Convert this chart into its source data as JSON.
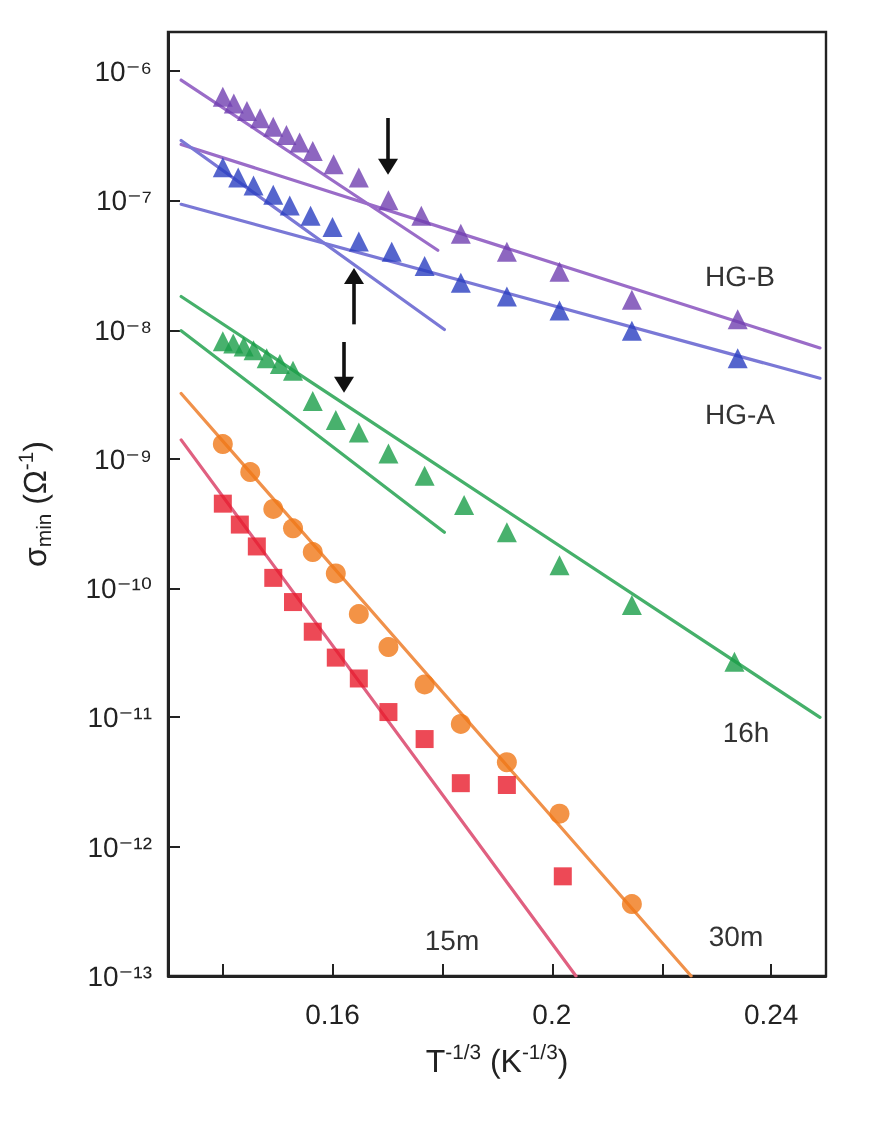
{
  "chart_data": {
    "type": "scatter",
    "xlabel": "T$^{-1/3}$ (K$^{-1/3}$)",
    "ylabel": "σ$_{min}$ (Ω$^{-1}$)",
    "log": "y",
    "grid": false,
    "xlim": [
      0.13,
      0.25
    ],
    "xticks": [
      {
        "value": 0.14,
        "label": null
      },
      0.16,
      {
        "value": 0.18,
        "label": null
      },
      0.2,
      {
        "value": 0.22,
        "label": null
      },
      0.24
    ],
    "ylim": [
      1e-13,
      2e-06
    ],
    "yticks": [
      {
        "value": 1e-13,
        "label": "10⁻¹³"
      },
      {
        "value": 1e-12,
        "label": "10⁻¹²"
      },
      {
        "value": 1e-11,
        "label": "10⁻¹¹"
      },
      {
        "value": 1e-10,
        "label": "10⁻¹⁰"
      },
      {
        "value": 1e-09,
        "label": "10⁻⁹"
      },
      {
        "value": 1e-08,
        "label": "10⁻⁸"
      },
      {
        "value": 1e-07,
        "label": "10⁻⁷"
      },
      {
        "value": 1e-06,
        "label": "10⁻⁶"
      }
    ],
    "series": [
      {
        "type": "line",
        "marker": "none",
        "color": "#9a6cc8",
        "x": [
          0.1324,
          0.1792
        ],
        "values": [
          8.5e-07,
          4.1e-08
        ]
      },
      {
        "type": "line",
        "marker": "none",
        "color": "#9a6cc8",
        "x": [
          0.1324,
          0.2489
        ],
        "values": [
          2.7e-07,
          7.2e-09
        ]
      },
      {
        "type": "line",
        "marker": "none",
        "color": "#7a78d6",
        "x": [
          0.1324,
          0.1804
        ],
        "values": [
          2.9e-07,
          1e-08
        ]
      },
      {
        "type": "line",
        "marker": "none",
        "color": "#7a78d6",
        "x": [
          0.1324,
          0.2489
        ],
        "values": [
          9.3e-08,
          4.2e-09
        ]
      },
      {
        "type": "line",
        "marker": "none",
        "color": "#45b06a",
        "x": [
          0.1324,
          0.2489
        ],
        "values": [
          1.8e-08,
          1e-11
        ]
      },
      {
        "type": "line",
        "marker": "none",
        "color": "#45b06a",
        "x": [
          0.1324,
          0.1804
        ],
        "values": [
          9.8e-09,
          2.7e-10
        ]
      },
      {
        "type": "line",
        "marker": "none",
        "color": "#f0914a",
        "x": [
          0.1324,
          0.2254
        ],
        "values": [
          3.2e-09,
          1e-13
        ]
      },
      {
        "type": "line",
        "marker": "none",
        "color": "#e06080",
        "x": [
          0.1324,
          0.2044
        ],
        "values": [
          1.4e-09,
          1e-13
        ]
      },
      {
        "marker": "triangle",
        "color": "#7040b0",
        "x": [
          0.14,
          0.142,
          0.1444,
          0.1468,
          0.1492,
          0.1516,
          0.154,
          0.1564,
          0.1602,
          0.1648,
          0.1702,
          0.1762,
          0.1834,
          0.1918,
          0.2014,
          0.2146,
          0.2339
        ],
        "values": [
          6.3e-07,
          5.6e-07,
          4.9e-07,
          4.3e-07,
          3.7e-07,
          3.2e-07,
          2.8e-07,
          2.4e-07,
          1.9e-07,
          1.5e-07,
          1e-07,
          7.6e-08,
          5.5e-08,
          4e-08,
          2.8e-08,
          1.7e-08,
          1.2e-08
        ]
      },
      {
        "marker": "triangle",
        "color": "#2a3ec0",
        "x": [
          0.14,
          0.1428,
          0.1456,
          0.1492,
          0.1522,
          0.156,
          0.16,
          0.1648,
          0.1708,
          0.1768,
          0.1834,
          0.1918,
          0.2014,
          0.2146,
          0.2339
        ],
        "values": [
          1.8e-07,
          1.5e-07,
          1.3e-07,
          1.1e-07,
          9.1e-08,
          7.6e-08,
          6.2e-08,
          4.8e-08,
          4e-08,
          3.1e-08,
          2.3e-08,
          1.8e-08,
          1.4e-08,
          9.8e-09,
          6e-09
        ]
      },
      {
        "marker": "triangle",
        "color": "#1a9e48",
        "x": [
          0.14,
          0.1419,
          0.1438,
          0.1456,
          0.148,
          0.1504,
          0.1528,
          0.1564,
          0.1606,
          0.1648,
          0.1702,
          0.1768,
          0.184,
          0.1918,
          0.2014,
          0.2146,
          0.2333
        ],
        "values": [
          8.1e-09,
          7.8e-09,
          7.4e-09,
          6.9e-09,
          6e-09,
          5.4e-09,
          4.8e-09,
          2.8e-09,
          2e-09,
          1.6e-09,
          1.1e-09,
          7.4e-10,
          4.4e-10,
          2.7e-10,
          1.5e-10,
          7.4e-11,
          2.7e-11
        ]
      },
      {
        "marker": "circle",
        "color": "#f07818",
        "x": [
          0.14,
          0.145,
          0.1492,
          0.1528,
          0.1564,
          0.1606,
          0.1648,
          0.1702,
          0.1768,
          0.1834,
          0.1918,
          0.2014,
          0.2146
        ],
        "values": [
          1.3e-09,
          7.9e-10,
          4.1e-10,
          2.9e-10,
          1.9e-10,
          1.3e-10,
          6.3e-11,
          3.5e-11,
          1.8e-11,
          8.9e-12,
          4.5e-12,
          1.8e-12,
          3.6e-13
        ]
      },
      {
        "marker": "square",
        "color": "#e81c2c",
        "x": [
          0.14,
          0.1431,
          0.1462,
          0.1492,
          0.1528,
          0.1564,
          0.1606,
          0.1648,
          0.1702,
          0.1768,
          0.1834,
          0.1918,
          0.202
        ],
        "values": [
          4.5e-10,
          3.1e-10,
          2.1e-10,
          1.2e-10,
          7.8e-11,
          4.6e-11,
          2.9e-11,
          2e-11,
          1.1e-11,
          6.8e-12,
          3.1e-12,
          3e-12,
          5.9e-13
        ]
      }
    ],
    "annotations": [
      "HG-B",
      "HG-A",
      "16h",
      "30m",
      "15m"
    ]
  }
}
